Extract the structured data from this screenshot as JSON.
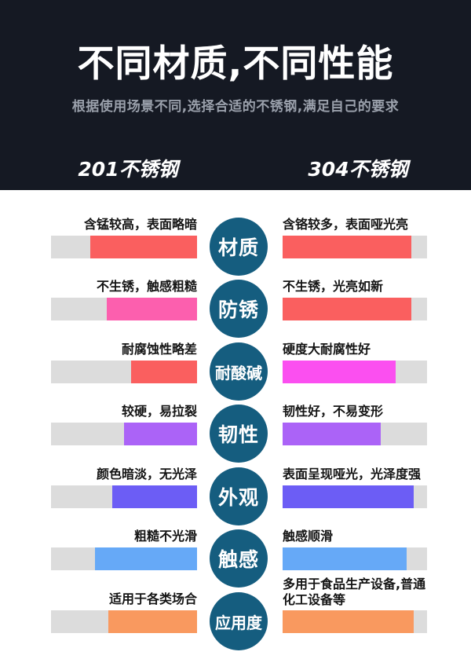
{
  "header": {
    "title": "不同材质,不同性能",
    "subtitle": "根据使用场景不同,选择合适的不锈钢,满足自己的要求",
    "left_column": "201不锈钢",
    "right_column": "304不锈钢",
    "bg_color": "#151923"
  },
  "colors": {
    "badge": "#155d7f",
    "track": "#dcdcdc",
    "red": "#fa5f5f",
    "pink": "#fc5fae",
    "magenta": "#fb4ff0",
    "purple": "#ab63f7",
    "indigo": "#6c5df5",
    "blue": "#66a9f7",
    "orange": "#f9995f"
  },
  "rows": [
    {
      "badge": "材质",
      "left": {
        "label": "含锰较高，表面略暗",
        "fill_pct": 73,
        "color": "#fa5f5f"
      },
      "right": {
        "label": "含铬较多，表面哑光亮",
        "fill_pct": 89,
        "color": "#fa5f5f"
      }
    },
    {
      "badge": "防锈",
      "left": {
        "label": "不生锈，触感粗糙",
        "fill_pct": 62,
        "color": "#fc5fae"
      },
      "right": {
        "label": "不生锈，光亮如新",
        "fill_pct": 89,
        "color": "#fa5f5f"
      }
    },
    {
      "badge": "耐酸碱",
      "left": {
        "label": "耐腐蚀性略差",
        "fill_pct": 45,
        "color": "#fa5f5f"
      },
      "right": {
        "label": "硬度大耐腐性好",
        "fill_pct": 78,
        "color": "#fb4ff0"
      }
    },
    {
      "badge": "韧性",
      "left": {
        "label": "较硬，易拉裂",
        "fill_pct": 50,
        "color": "#ab63f7"
      },
      "right": {
        "label": "韧性好，不易变形",
        "fill_pct": 68,
        "color": "#ab63f7"
      }
    },
    {
      "badge": "外观",
      "left": {
        "label": "颜色暗淡，无光泽",
        "fill_pct": 58,
        "color": "#6c5df5"
      },
      "right": {
        "label": "表面呈现哑光，光泽度强",
        "fill_pct": 91,
        "color": "#6c5df5"
      }
    },
    {
      "badge": "触感",
      "left": {
        "label": "粗糙不光滑",
        "fill_pct": 70,
        "color": "#66a9f7"
      },
      "right": {
        "label": "触感顺滑",
        "fill_pct": 86,
        "color": "#66a9f7"
      }
    },
    {
      "badge": "应用度",
      "left": {
        "label": "适用于各类场合",
        "fill_pct": 61,
        "color": "#f9995f"
      },
      "right": {
        "label": "多用于食品生产设备,普通化工设备等",
        "fill_pct": 91,
        "color": "#f9995f"
      }
    }
  ],
  "chart_data": {
    "type": "bar",
    "orientation": "horizontal",
    "title": "不同材质,不同性能",
    "subtitle": "根据使用场景不同,选择合适的不锈钢,满足自己的要求",
    "categories": [
      "材质",
      "防锈",
      "耐酸碱",
      "韧性",
      "外观",
      "触感",
      "应用度"
    ],
    "series": [
      {
        "name": "201不锈钢",
        "values": [
          73,
          62,
          45,
          50,
          58,
          70,
          61
        ],
        "annotations": [
          "含锰较高，表面略暗",
          "不生锈，触感粗糙",
          "耐腐蚀性略差",
          "较硬，易拉裂",
          "颜色暗淡，无光泽",
          "粗糙不光滑",
          "适用于各类场合"
        ]
      },
      {
        "name": "304不锈钢",
        "values": [
          89,
          89,
          78,
          68,
          91,
          86,
          91
        ],
        "annotations": [
          "含铬较多，表面哑光亮",
          "不生锈，光亮如新",
          "硬度大耐腐性好",
          "韧性好，不易变形",
          "表面呈现哑光，光泽度强",
          "触感顺滑",
          "多用于食品生产设备,普通化工设备等"
        ]
      }
    ],
    "value_unit": "percent of bar track filled (estimated from pixels)",
    "xlim": [
      0,
      100
    ],
    "grid": false,
    "legend_position": "column headers above each bar group"
  }
}
